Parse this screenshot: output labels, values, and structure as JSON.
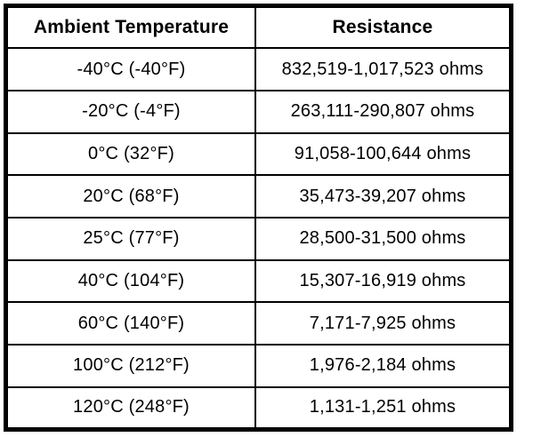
{
  "colors": {
    "background": "#ffffff",
    "border": "#000000",
    "text": "#000000"
  },
  "table": {
    "headers": [
      "Ambient Temperature",
      "Resistance"
    ],
    "rows": [
      [
        "-40°C (-40°F)",
        "832,519-1,017,523 ohms"
      ],
      [
        "-20°C (-4°F)",
        "263,111-290,807 ohms"
      ],
      [
        "0°C (32°F)",
        "91,058-100,644 ohms"
      ],
      [
        "20°C (68°F)",
        "35,473-39,207 ohms"
      ],
      [
        "25°C (77°F)",
        "28,500-31,500 ohms"
      ],
      [
        "40°C (104°F)",
        "15,307-16,919 ohms"
      ],
      [
        "60°C (140°F)",
        "7,171-7,925 ohms"
      ],
      [
        "100°C (212°F)",
        "1,976-2,184 ohms"
      ],
      [
        "120°C (248°F)",
        "1,131-1,251 ohms"
      ]
    ]
  },
  "chart_data": {
    "type": "table",
    "columns": [
      "Ambient Temperature",
      "Resistance"
    ],
    "rows": [
      {
        "temperature_c": -40,
        "temperature_f": -40,
        "resistance_min_ohms": 832519,
        "resistance_max_ohms": 1017523,
        "label": "-40°C (-40°F)",
        "resistance_label": "832,519-1,017,523 ohms"
      },
      {
        "temperature_c": -20,
        "temperature_f": -4,
        "resistance_min_ohms": 263111,
        "resistance_max_ohms": 290807,
        "label": "-20°C (-4°F)",
        "resistance_label": "263,111-290,807 ohms"
      },
      {
        "temperature_c": 0,
        "temperature_f": 32,
        "resistance_min_ohms": 91058,
        "resistance_max_ohms": 100644,
        "label": "0°C (32°F)",
        "resistance_label": "91,058-100,644 ohms"
      },
      {
        "temperature_c": 20,
        "temperature_f": 68,
        "resistance_min_ohms": 35473,
        "resistance_max_ohms": 39207,
        "label": "20°C (68°F)",
        "resistance_label": "35,473-39,207 ohms"
      },
      {
        "temperature_c": 25,
        "temperature_f": 77,
        "resistance_min_ohms": 28500,
        "resistance_max_ohms": 31500,
        "label": "25°C (77°F)",
        "resistance_label": "28,500-31,500 ohms"
      },
      {
        "temperature_c": 40,
        "temperature_f": 104,
        "resistance_min_ohms": 15307,
        "resistance_max_ohms": 16919,
        "label": "40°C (104°F)",
        "resistance_label": "15,307-16,919 ohms"
      },
      {
        "temperature_c": 60,
        "temperature_f": 140,
        "resistance_min_ohms": 7171,
        "resistance_max_ohms": 7925,
        "label": "60°C (140°F)",
        "resistance_label": "7,171-7,925 ohms"
      },
      {
        "temperature_c": 100,
        "temperature_f": 212,
        "resistance_min_ohms": 1976,
        "resistance_max_ohms": 2184,
        "label": "100°C (212°F)",
        "resistance_label": "1,976-2,184 ohms"
      },
      {
        "temperature_c": 120,
        "temperature_f": 248,
        "resistance_min_ohms": 1131,
        "resistance_max_ohms": 1251,
        "label": "120°C (248°F)",
        "resistance_label": "1,131-1,251 ohms"
      }
    ]
  }
}
